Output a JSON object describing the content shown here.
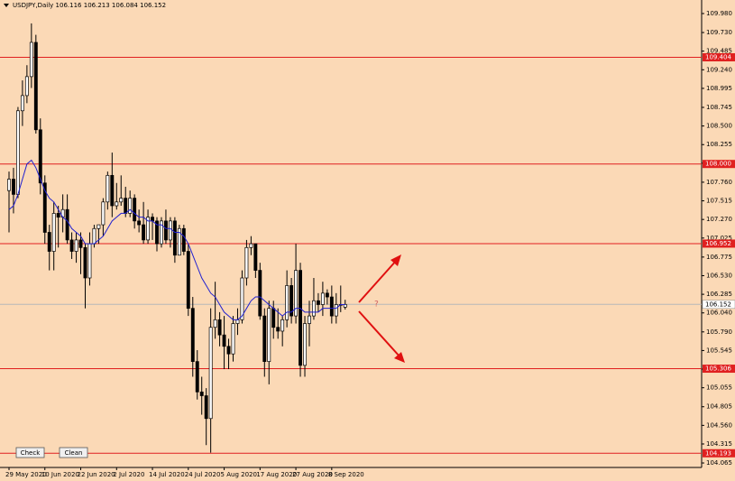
{
  "chart_data": {
    "type": "candlestick",
    "title": "USDJPY,Daily",
    "header_values": [
      106.116,
      106.213,
      106.084,
      106.152
    ],
    "categories": [
      "29 May 2020",
      null,
      null,
      null,
      null,
      null,
      null,
      null,
      "10 Jun 2020",
      null,
      null,
      null,
      null,
      null,
      null,
      null,
      "22 Jun 2020",
      null,
      null,
      null,
      null,
      null,
      null,
      null,
      "2 Jul 2020",
      null,
      null,
      null,
      null,
      null,
      null,
      null,
      "14 Jul 2020",
      null,
      null,
      null,
      null,
      null,
      null,
      null,
      "24 Jul 2020",
      null,
      null,
      null,
      null,
      null,
      null,
      null,
      "5 Aug 2020",
      null,
      null,
      null,
      null,
      null,
      null,
      null,
      "17 Aug 2020",
      null,
      null,
      null,
      null,
      null,
      null,
      null,
      "27 Aug 2020",
      null,
      null,
      null,
      null,
      null,
      null,
      null,
      "8 Sep 2020",
      null,
      null,
      null
    ],
    "open": [
      107.65,
      107.8,
      107.6,
      108.7,
      108.9,
      109.15,
      109.6,
      108.45,
      107.75,
      107.1,
      106.85,
      107.35,
      107.3,
      107.4,
      107,
      106.85,
      107,
      106.9,
      106.5,
      106.95,
      107.15,
      107.2,
      107.5,
      107.85,
      107.45,
      107.5,
      107.55,
      107.35,
      107.55,
      107.25,
      107.2,
      107,
      107.3,
      107.25,
      106.95,
      107.25,
      107,
      107.25,
      106.8,
      107.15,
      106.85,
      106.1,
      105.4,
      105,
      104.95,
      104.65,
      105.85,
      105.95,
      105.75,
      105.6,
      105.5,
      105.9,
      105.95,
      106.5,
      106.9,
      106.95,
      106.6,
      106,
      105.4,
      106.1,
      105.85,
      105.8,
      105.95,
      106.4,
      106,
      106.6,
      105.35,
      105.9,
      106,
      106.2,
      106.15,
      106.3,
      106.25,
      106,
      106.15,
      106.116
    ],
    "high": [
      107.9,
      107.95,
      108.75,
      109.1,
      109.3,
      109.85,
      109.7,
      108.6,
      107.85,
      107.2,
      107.5,
      107.45,
      107.6,
      107.6,
      107.1,
      107.1,
      107.1,
      106.95,
      107.1,
      107.2,
      107.2,
      107.55,
      107.9,
      108.15,
      107.75,
      107.85,
      107.7,
      107.65,
      107.6,
      107.4,
      107.5,
      107.4,
      107.35,
      107.3,
      107.3,
      107.4,
      107.3,
      107.3,
      107.2,
      107.2,
      106.95,
      106.25,
      105.55,
      105.2,
      105.05,
      106.1,
      106.45,
      106.05,
      106,
      105.7,
      106,
      106.1,
      106.6,
      107,
      107.05,
      106.95,
      106.7,
      106.1,
      106.2,
      106.2,
      106.1,
      106,
      106.6,
      106.5,
      106.95,
      106.7,
      106,
      106.2,
      106.5,
      106.3,
      106.45,
      106.35,
      106.4,
      106.3,
      106.4,
      106.213
    ],
    "low": [
      107.1,
      107.35,
      107.55,
      108.5,
      108.8,
      109,
      108.4,
      107.6,
      106.95,
      106.6,
      106.6,
      106.9,
      107.1,
      106.95,
      106.75,
      106.7,
      106.55,
      106.1,
      106.4,
      106.9,
      106.95,
      107.05,
      107.4,
      107.3,
      107.4,
      107.45,
      107.3,
      107.3,
      107.15,
      107.1,
      106.95,
      106.95,
      107,
      106.85,
      106.9,
      106.95,
      106.9,
      106.7,
      106.8,
      106.8,
      106,
      105.2,
      104.9,
      104.7,
      104.3,
      104.2,
      105.7,
      105.6,
      105.3,
      105.3,
      105.4,
      105.75,
      105.9,
      106.4,
      106.8,
      106.5,
      105.95,
      105.2,
      105.1,
      105.7,
      105.7,
      105.6,
      105.85,
      105.9,
      105.9,
      105.2,
      105.2,
      105.6,
      105.95,
      106.05,
      106,
      106.15,
      105.9,
      105.9,
      106.05,
      106.084
    ],
    "close": [
      107.8,
      107.6,
      108.7,
      108.9,
      109.15,
      109.6,
      108.45,
      107.75,
      107.1,
      106.85,
      107.35,
      107.3,
      107.4,
      107,
      106.85,
      107,
      106.9,
      106.5,
      106.95,
      107.15,
      107.2,
      107.5,
      107.85,
      107.45,
      107.5,
      107.55,
      107.35,
      107.55,
      107.25,
      107.2,
      107,
      107.3,
      107.25,
      106.95,
      107.25,
      107,
      107.25,
      106.8,
      107.15,
      106.85,
      106.1,
      105.4,
      105,
      104.95,
      104.65,
      105.85,
      105.95,
      105.75,
      105.6,
      105.5,
      105.9,
      105.95,
      106.5,
      106.9,
      106.95,
      106.6,
      106,
      105.4,
      106.1,
      105.85,
      105.8,
      105.95,
      106.4,
      106,
      106.6,
      105.35,
      105.9,
      106,
      106.2,
      106.15,
      106.3,
      106.25,
      106,
      106.15,
      106.15,
      106.152
    ],
    "ma": {
      "color": "#2020d0",
      "values": [
        107.4,
        107.45,
        107.6,
        107.8,
        108,
        108.05,
        107.95,
        107.8,
        107.65,
        107.55,
        107.5,
        107.4,
        107.3,
        107.25,
        107.15,
        107.1,
        107.05,
        106.95,
        106.95,
        106.95,
        107,
        107.05,
        107.15,
        107.25,
        107.3,
        107.35,
        107.35,
        107.4,
        107.35,
        107.3,
        107.3,
        107.25,
        107.25,
        107.2,
        107.2,
        107.15,
        107.15,
        107.1,
        107.1,
        107.05,
        106.95,
        106.8,
        106.65,
        106.5,
        106.4,
        106.3,
        106.25,
        106.15,
        106.05,
        106,
        105.95,
        105.95,
        106,
        106.1,
        106.2,
        106.25,
        106.25,
        106.2,
        106.15,
        106.1,
        106.05,
        106,
        106.05,
        106.05,
        106.1,
        106.1,
        106.05,
        106.05,
        106.05,
        106.05,
        106.1,
        106.1,
        106.1,
        106.1,
        106.15,
        106.15
      ]
    },
    "levels": {
      "color": "#e02020",
      "values": [
        109.404,
        {
          "value": 108,
          "label": "108.000"
        },
        106.952,
        105.306,
        104.193
      ]
    },
    "ylim": [
      104.006,
      110.158
    ],
    "yticks": [
      {
        "value": 109.98,
        "label": "109.980"
      },
      {
        "value": 109.73,
        "label": "109.730"
      },
      109.485,
      {
        "value": 109.24,
        "label": "109.240"
      },
      108.995,
      108.745,
      {
        "value": 108.5,
        "label": "108.500"
      },
      108.255,
      {
        "value": 108.01,
        "label": "108.010"
      },
      {
        "value": 107.76,
        "label": "107.760"
      },
      107.515,
      {
        "value": 107.27,
        "label": "107.270"
      },
      107.025,
      106.775,
      {
        "value": 106.53,
        "label": "106.530"
      },
      106.285,
      {
        "value": 106.04,
        "label": "106.040"
      },
      {
        "value": 105.79,
        "label": "105.790"
      },
      105.545,
      {
        "value": 105.3,
        "label": "105.300"
      },
      105.055,
      104.805,
      {
        "value": 104.56,
        "label": "104.560"
      },
      104.315,
      104.065
    ],
    "annotation": "?",
    "buttons": [
      "Check",
      "Clean"
    ]
  }
}
